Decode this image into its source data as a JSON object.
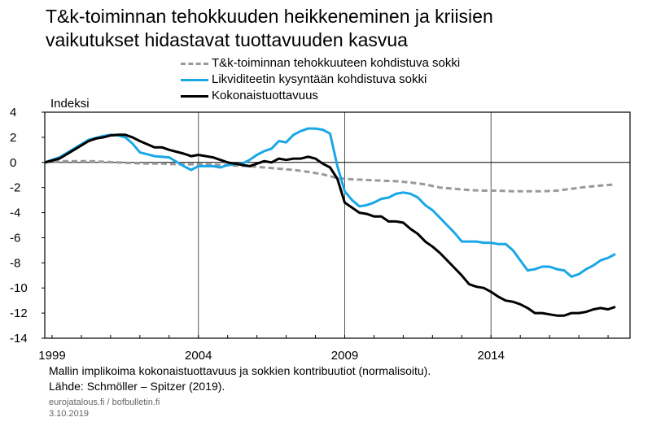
{
  "title_line1": "T&k-toiminnan tehokkuuden heikkeneminen ja kriisien",
  "title_line2": "vaikutukset hidastavat tuottavuuden kasvua",
  "legend": [
    {
      "label": "T&k-toiminnan tehokkuuteen kohdistuva sokki",
      "color": "#999999",
      "style": "dashed"
    },
    {
      "label": "Likviditeetin kysyntään kohdistuva sokki",
      "color": "#1aa7e6",
      "style": "solid"
    },
    {
      "label": "Kokonaistuottavuus",
      "color": "#000000",
      "style": "solid"
    }
  ],
  "note_line1": "Mallin implikoima kokonaistuottavuus ja sokkien kontribuutiot (normalisoitu).",
  "note_line2": "Lähde: Schmöller – Spitzer (2019).",
  "credit_line1": "eurojatalous.fi  / bofbulletin.fi",
  "credit_line2": "3.10.2019",
  "chart_data": {
    "type": "line",
    "ylabel": "Indeksi",
    "ylim": [
      -14,
      4
    ],
    "yticks": [
      4,
      2,
      0,
      -2,
      -4,
      -6,
      -8,
      -10,
      -12,
      -14
    ],
    "xlim": [
      1998.75,
      2018.75
    ],
    "xticks": [
      1999,
      2004,
      2009,
      2014
    ],
    "grid": "vertical lines at x ticks",
    "series": [
      {
        "name": "T&k-toiminnan tehokkuuteen kohdistuva sokki",
        "color": "#999999",
        "dash": true,
        "x": [
          1998.75,
          1999.25,
          1999.75,
          2000.25,
          2000.75,
          2001.25,
          2001.75,
          2002.25,
          2002.75,
          2003.25,
          2003.75,
          2004.25,
          2004.75,
          2005.25,
          2005.75,
          2006.25,
          2006.75,
          2007.25,
          2007.75,
          2008.25,
          2008.75,
          2009.25,
          2009.75,
          2010.25,
          2010.75,
          2011.25,
          2011.75,
          2012.25,
          2012.75,
          2013.25,
          2013.75,
          2014.25,
          2014.75,
          2015.25,
          2015.75,
          2016.25,
          2016.75,
          2017.25,
          2017.75,
          2018.25
        ],
        "y": [
          0,
          0.1,
          0.1,
          0.1,
          0.05,
          0,
          -0.05,
          -0.1,
          -0.1,
          -0.15,
          -0.15,
          -0.15,
          -0.2,
          -0.25,
          -0.3,
          -0.4,
          -0.5,
          -0.6,
          -0.75,
          -0.95,
          -1.25,
          -1.35,
          -1.4,
          -1.45,
          -1.5,
          -1.6,
          -1.75,
          -2,
          -2.1,
          -2.2,
          -2.25,
          -2.25,
          -2.3,
          -2.3,
          -2.3,
          -2.25,
          -2.1,
          -1.95,
          -1.85,
          -1.75
        ]
      },
      {
        "name": "Likviditeetin kysyntään kohdistuva sokki",
        "color": "#1aa7e6",
        "dash": false,
        "x": [
          1998.75,
          1999.25,
          1999.75,
          2000.25,
          2000.75,
          2001.0,
          2001.25,
          2001.5,
          2001.75,
          2002.0,
          2002.5,
          2003.0,
          2003.5,
          2003.75,
          2004.0,
          2004.5,
          2004.75,
          2005.0,
          2005.5,
          2005.75,
          2006.0,
          2006.25,
          2006.5,
          2006.75,
          2007.0,
          2007.25,
          2007.5,
          2007.75,
          2008.0,
          2008.25,
          2008.5,
          2008.75,
          2009.0,
          2009.25,
          2009.5,
          2009.75,
          2010.0,
          2010.25,
          2010.5,
          2010.75,
          2011.0,
          2011.25,
          2011.5,
          2011.75,
          2012.0,
          2012.25,
          2012.5,
          2012.75,
          2013.0,
          2013.25,
          2013.5,
          2013.75,
          2014.0,
          2014.25,
          2014.5,
          2014.75,
          2015.0,
          2015.25,
          2015.5,
          2015.75,
          2016.0,
          2016.25,
          2016.5,
          2016.75,
          2017.0,
          2017.25,
          2017.5,
          2017.75,
          2018.0,
          2018.25
        ],
        "y": [
          0,
          0.4,
          1.1,
          1.8,
          2.1,
          2.2,
          2.15,
          2.0,
          1.5,
          0.8,
          0.5,
          0.4,
          -0.3,
          -0.6,
          -0.3,
          -0.3,
          -0.4,
          -0.2,
          -0.1,
          0.2,
          0.6,
          0.9,
          1.1,
          1.7,
          1.6,
          2.2,
          2.5,
          2.7,
          2.7,
          2.6,
          2.3,
          -0.3,
          -2.3,
          -3.0,
          -3.5,
          -3.4,
          -3.2,
          -2.9,
          -2.8,
          -2.5,
          -2.4,
          -2.5,
          -2.8,
          -3.4,
          -3.8,
          -4.4,
          -5.0,
          -5.6,
          -6.3,
          -6.3,
          -6.3,
          -6.4,
          -6.4,
          -6.5,
          -6.5,
          -7.0,
          -7.8,
          -8.6,
          -8.5,
          -8.3,
          -8.3,
          -8.5,
          -8.6,
          -9.1,
          -8.9,
          -8.5,
          -8.2,
          -7.8,
          -7.6,
          -7.3
        ]
      },
      {
        "name": "Kokonaistuottavuus",
        "color": "#000000",
        "dash": false,
        "x": [
          1998.75,
          1999.25,
          1999.75,
          2000.25,
          2000.5,
          2000.75,
          2001.0,
          2001.25,
          2001.5,
          2001.75,
          2002.0,
          2002.5,
          2002.75,
          2003.0,
          2003.5,
          2003.75,
          2004.0,
          2004.5,
          2004.75,
          2005.0,
          2005.5,
          2005.75,
          2006.0,
          2006.25,
          2006.5,
          2006.75,
          2007.0,
          2007.25,
          2007.5,
          2007.75,
          2008.0,
          2008.25,
          2008.5,
          2008.75,
          2009.0,
          2009.25,
          2009.5,
          2009.75,
          2010.0,
          2010.25,
          2010.5,
          2010.75,
          2011.0,
          2011.25,
          2011.5,
          2011.75,
          2012.0,
          2012.25,
          2012.5,
          2012.75,
          2013.0,
          2013.25,
          2013.5,
          2013.75,
          2014.0,
          2014.25,
          2014.5,
          2014.75,
          2015.0,
          2015.25,
          2015.5,
          2015.75,
          2016.0,
          2016.25,
          2016.5,
          2016.75,
          2017.0,
          2017.25,
          2017.5,
          2017.75,
          2018.0,
          2018.25
        ],
        "y": [
          0,
          0.3,
          1.0,
          1.7,
          1.9,
          2.0,
          2.15,
          2.2,
          2.2,
          2.0,
          1.7,
          1.2,
          1.2,
          1.0,
          0.7,
          0.5,
          0.6,
          0.4,
          0.2,
          0.0,
          -0.2,
          -0.3,
          -0.1,
          0.1,
          0.0,
          0.3,
          0.2,
          0.3,
          0.3,
          0.45,
          0.3,
          -0.1,
          -0.4,
          -1.3,
          -3.2,
          -3.6,
          -4.0,
          -4.1,
          -4.3,
          -4.3,
          -4.7,
          -4.7,
          -4.8,
          -5.3,
          -5.7,
          -6.3,
          -6.7,
          -7.2,
          -7.8,
          -8.4,
          -9.0,
          -9.7,
          -9.9,
          -10.0,
          -10.3,
          -10.7,
          -11.0,
          -11.1,
          -11.3,
          -11.6,
          -12.0,
          -12.0,
          -12.1,
          -12.2,
          -12.2,
          -12.0,
          -12.0,
          -11.9,
          -11.7,
          -11.6,
          -11.7,
          -11.5
        ]
      }
    ]
  }
}
